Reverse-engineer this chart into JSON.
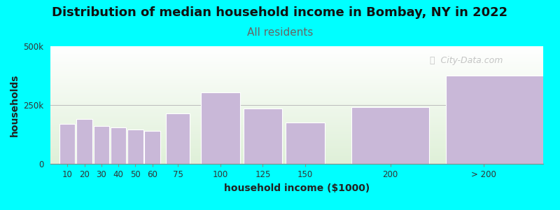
{
  "title": "Distribution of median household income in Bombay, NY in 2022",
  "subtitle": "All residents",
  "xlabel": "household income ($1000)",
  "ylabel": "households",
  "background_color": "#00FFFF",
  "plot_bg_top": "#dff0d8",
  "plot_bg_bottom": "#ffffff",
  "bar_color": "#c9b8d8",
  "bar_edgecolor": "#ffffff",
  "ylim": [
    0,
    500000
  ],
  "ytick_labels": [
    "0",
    "250k",
    "500k"
  ],
  "ytick_values": [
    0,
    250000,
    500000
  ],
  "categories": [
    "10",
    "20",
    "30",
    "40",
    "50",
    "60",
    "75",
    "100",
    "125",
    "150",
    "200",
    "> 200"
  ],
  "values": [
    170000,
    190000,
    160000,
    155000,
    145000,
    140000,
    215000,
    305000,
    235000,
    175000,
    240000,
    375000
  ],
  "bar_lefts": [
    5,
    15,
    25,
    35,
    45,
    55,
    67.5,
    87.5,
    112.5,
    137.5,
    175,
    230
  ],
  "bar_widths": [
    10,
    10,
    10,
    10,
    10,
    10,
    15,
    25,
    25,
    25,
    50,
    70
  ],
  "xtick_positions": [
    10,
    20,
    30,
    40,
    50,
    60,
    75,
    100,
    125,
    150,
    200,
    255
  ],
  "xtick_labels": [
    "10",
    "20",
    "30",
    "40",
    "50",
    "60",
    "75",
    "100",
    "125",
    "150",
    "200",
    "> 200"
  ],
  "xlim": [
    0,
    290
  ],
  "watermark": "ⓘ  City-Data.com",
  "title_fontsize": 13,
  "subtitle_fontsize": 11,
  "axis_label_fontsize": 10,
  "subtitle_color": "#666666"
}
